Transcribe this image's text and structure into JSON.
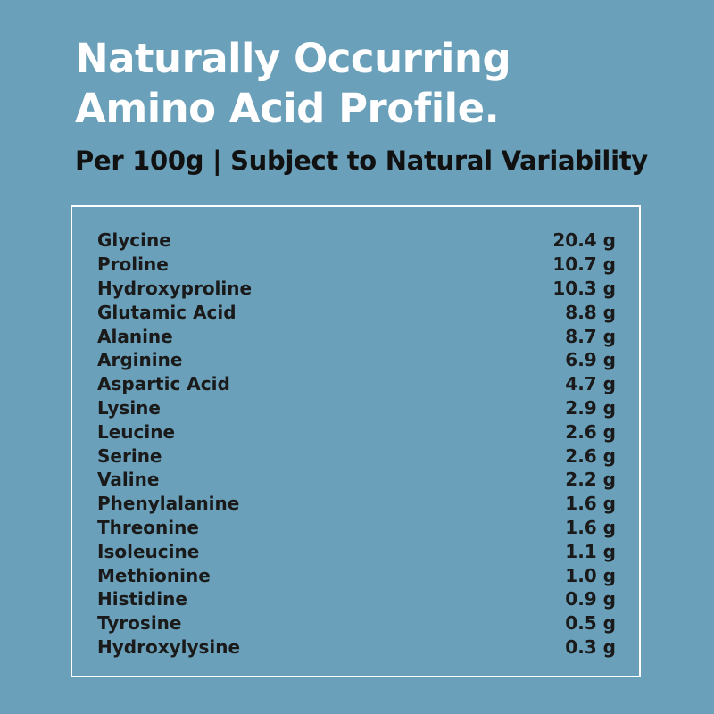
{
  "title": {
    "line1": "Naturally Occurring",
    "line2": "Amino Acid Profile."
  },
  "subtitle": "Per 100g | Subject to Natural Variability",
  "amino_acids": [
    {
      "name": "Glycine",
      "amount": "20.4 g"
    },
    {
      "name": "Proline",
      "amount": "10.7 g"
    },
    {
      "name": "Hydroxyproline",
      "amount": "10.3 g"
    },
    {
      "name": "Glutamic Acid",
      "amount": "8.8 g"
    },
    {
      "name": "Alanine",
      "amount": "8.7 g"
    },
    {
      "name": "Arginine",
      "amount": "6.9 g"
    },
    {
      "name": "Aspartic Acid",
      "amount": "4.7 g"
    },
    {
      "name": "Lysine",
      "amount": "2.9 g"
    },
    {
      "name": "Leucine",
      "amount": "2.6 g"
    },
    {
      "name": "Serine",
      "amount": "2.6 g"
    },
    {
      "name": "Valine",
      "amount": "2.2 g"
    },
    {
      "name": "Phenylalanine",
      "amount": "1.6 g"
    },
    {
      "name": "Threonine",
      "amount": "1.6 g"
    },
    {
      "name": "Isoleucine",
      "amount": "1.1 g"
    },
    {
      "name": "Methionine",
      "amount": "1.0 g"
    },
    {
      "name": "Histidine",
      "amount": "0.9 g"
    },
    {
      "name": "Tyrosine",
      "amount": "0.5 g"
    },
    {
      "name": "Hydroxylysine",
      "amount": "0.3 g"
    }
  ],
  "colors": {
    "background": "#6aa0b9",
    "title": "#ffffff",
    "text": "#1a1a1a",
    "border": "#ffffff"
  }
}
